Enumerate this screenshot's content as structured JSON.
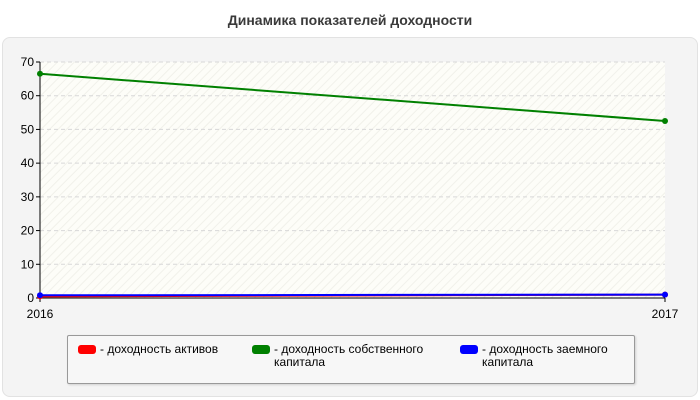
{
  "chart_data": {
    "type": "line",
    "title": "Динамика показателей доходности",
    "xlabel": "",
    "ylabel": "",
    "x": [
      "2016",
      "2017"
    ],
    "ylim": [
      0,
      70
    ],
    "yticks": [
      0,
      10,
      20,
      30,
      40,
      50,
      60,
      70
    ],
    "grid": true,
    "legend_position": "bottom",
    "series": [
      {
        "name": "- доходность активов",
        "color": "#ff0000",
        "values": [
          0.5,
          1.0
        ]
      },
      {
        "name": "- доходность собственного капитала",
        "color": "#008000",
        "values": [
          66.5,
          52.5
        ]
      },
      {
        "name": "- доходность заемного капитала",
        "color": "#0000ff",
        "values": [
          0.8,
          1.0
        ]
      }
    ]
  }
}
